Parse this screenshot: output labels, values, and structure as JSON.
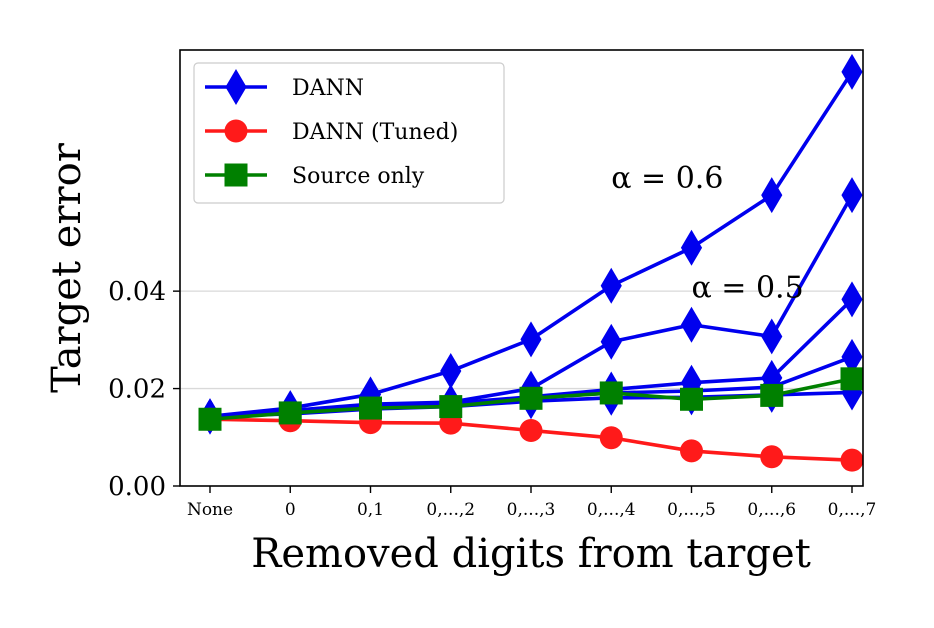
{
  "chart_data": {
    "type": "line",
    "title": "",
    "xlabel": "Removed digits from target",
    "ylabel": "Target error",
    "categories": [
      "None",
      "0",
      "0,1",
      "0,...,2",
      "0,...,3",
      "0,...,4",
      "0,...,5",
      "0,...,6",
      "0,...,7"
    ],
    "ylim": [
      0.0,
      0.0895
    ],
    "yticks": [
      0.0,
      0.02,
      0.04
    ],
    "ytick_labels": [
      "0.00",
      "0.02",
      "0.04"
    ],
    "grid": "horizontal",
    "legend_position": "top-left",
    "legend": [
      {
        "name": "DANN",
        "color": "#0000ee",
        "marker": "diamond"
      },
      {
        "name": "DANN (Tuned)",
        "color": "#ff1a1a",
        "marker": "circle"
      },
      {
        "name": "Source only",
        "color": "#008000",
        "marker": "square"
      }
    ],
    "series": [
      {
        "name": "DANN",
        "group": "DANN",
        "alpha": "0.6",
        "values": [
          0.0143,
          0.016,
          0.0188,
          0.0236,
          0.0301,
          0.0411,
          0.0489,
          0.0597,
          0.085
        ]
      },
      {
        "name": "DANN",
        "group": "DANN",
        "alpha": "0.5",
        "values": [
          0.0143,
          0.0155,
          0.0168,
          0.0172,
          0.02,
          0.0296,
          0.0331,
          0.0307,
          0.0597
        ]
      },
      {
        "name": "DANN",
        "group": "DANN",
        "values": [
          0.0143,
          0.0152,
          0.0165,
          0.017,
          0.0183,
          0.0198,
          0.0212,
          0.0222,
          0.0383
        ]
      },
      {
        "name": "DANN",
        "group": "DANN",
        "values": [
          0.0143,
          0.015,
          0.016,
          0.0168,
          0.0181,
          0.0191,
          0.0195,
          0.0203,
          0.0265
        ]
      },
      {
        "name": "DANN",
        "group": "DANN",
        "values": [
          0.0143,
          0.0148,
          0.0158,
          0.0163,
          0.0174,
          0.0181,
          0.0182,
          0.0187,
          0.0192
        ]
      },
      {
        "name": "DANN (Tuned)",
        "group": "DANN (Tuned)",
        "values": [
          0.0137,
          0.0134,
          0.013,
          0.0129,
          0.0114,
          0.0099,
          0.0072,
          0.006,
          0.0053
        ]
      },
      {
        "name": "Source only",
        "group": "Source only",
        "values": [
          0.0137,
          0.015,
          0.016,
          0.0163,
          0.018,
          0.0191,
          0.0178,
          0.0186,
          0.022
        ]
      }
    ],
    "annotations": [
      {
        "text": "α = 0.6",
        "x": "0,...,4",
        "y": 0.0612
      },
      {
        "text": "α = 0.5",
        "x": "0,...,5",
        "y": 0.0387
      }
    ]
  }
}
